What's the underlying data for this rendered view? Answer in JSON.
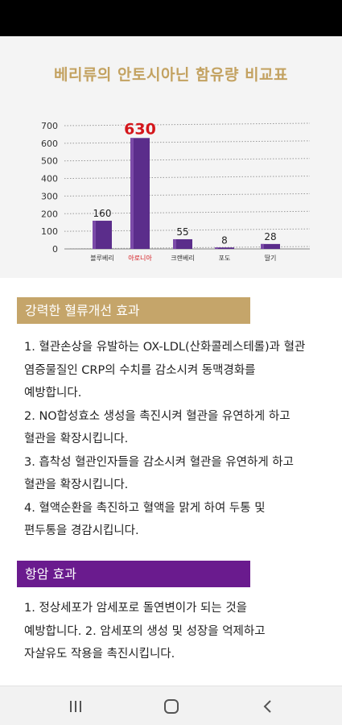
{
  "page": {
    "title": "베리류의 안토시아닌 함유량 비교표"
  },
  "chart_data": {
    "type": "bar",
    "title": "베리류의 안토시아닌 함유량 비교표",
    "categories": [
      "블루베리",
      "아로니아",
      "크랜베리",
      "포도",
      "딸기"
    ],
    "values": [
      160,
      630,
      55,
      8,
      28
    ],
    "highlight_index": 1,
    "ylim": [
      0,
      700
    ],
    "yticks": [
      0,
      100,
      200,
      300,
      400,
      500,
      600,
      700
    ],
    "grid": true,
    "xlabel": "",
    "ylabel": "",
    "colors": {
      "bar": "#5b2d8b",
      "highlight_label": "#d4161b",
      "label": "#222222",
      "grid": "#999999"
    }
  },
  "section1": {
    "heading": "강력한 혈류개선 효과",
    "lines": [
      "1. 혈관손상을 유발하는 OX-LDL(산화콜레스테롤)과 혈관",
      "염증물질인 CRP의 수치를 감소시켜 동맥경화를",
      "예방합니다.",
      "2. NO합성효소 생성을 촉진시켜 혈관을 유연하게 하고",
      "혈관을 확장시킵니다.",
      "3. 흡착성 혈관인자들을 감소시켜 혈관을 유연하게 하고",
      "혈관을 확장시킵니다.",
      "4. 혈액순환을 촉진하고 혈액을 맑게 하여 두통 및",
      "편두통을 경감시킵니다."
    ]
  },
  "section2": {
    "heading": "항암 효과",
    "lines": [
      "1. 정상세포가 암세포로 돌연변이가 되는 것을",
      "예방합니다. 2. 암세포의 생성 및 성장을 억제하고",
      "자살유도 작용을 촉진시킵니다."
    ]
  },
  "nav": {
    "recent": "recent-apps-icon",
    "home": "home-icon",
    "back": "back-icon"
  }
}
